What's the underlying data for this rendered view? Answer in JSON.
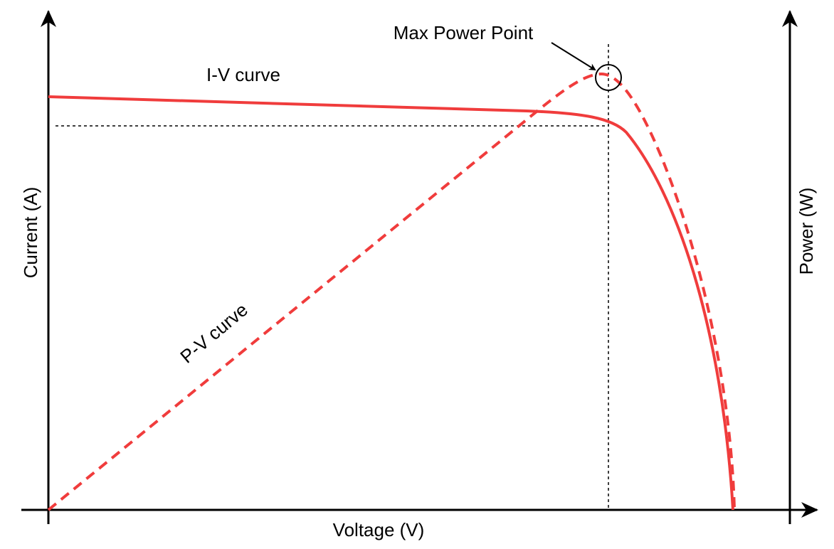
{
  "labels": {
    "max_power_point": "Max Power Point",
    "iv_curve": "I-V curve",
    "pv_curve": "P-V curve"
  },
  "axes": {
    "left": "Current (A)",
    "right": "Power (W)",
    "bottom": "Voltage (V)"
  }
}
